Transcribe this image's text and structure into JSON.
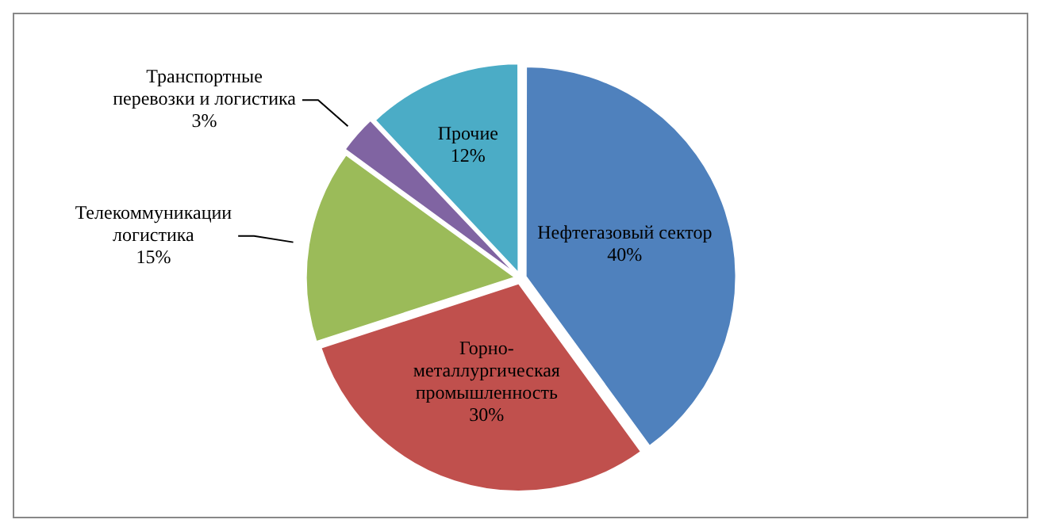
{
  "chart_data": {
    "type": "pie",
    "categories": [
      "Нефтегазовый сектор",
      "Горно-металлургическая промышленность",
      "Телекоммуникации логистика",
      "Транспортные перевозки и логистика",
      "Прочие"
    ],
    "values": [
      40,
      30,
      15,
      3,
      12
    ],
    "value_labels": [
      "40%",
      "30%",
      "15%",
      "3%",
      "12%"
    ],
    "colors": [
      "#4f81bd",
      "#c0504d",
      "#9bbb59",
      "#8064a2",
      "#4bacc6"
    ],
    "legend": false
  }
}
